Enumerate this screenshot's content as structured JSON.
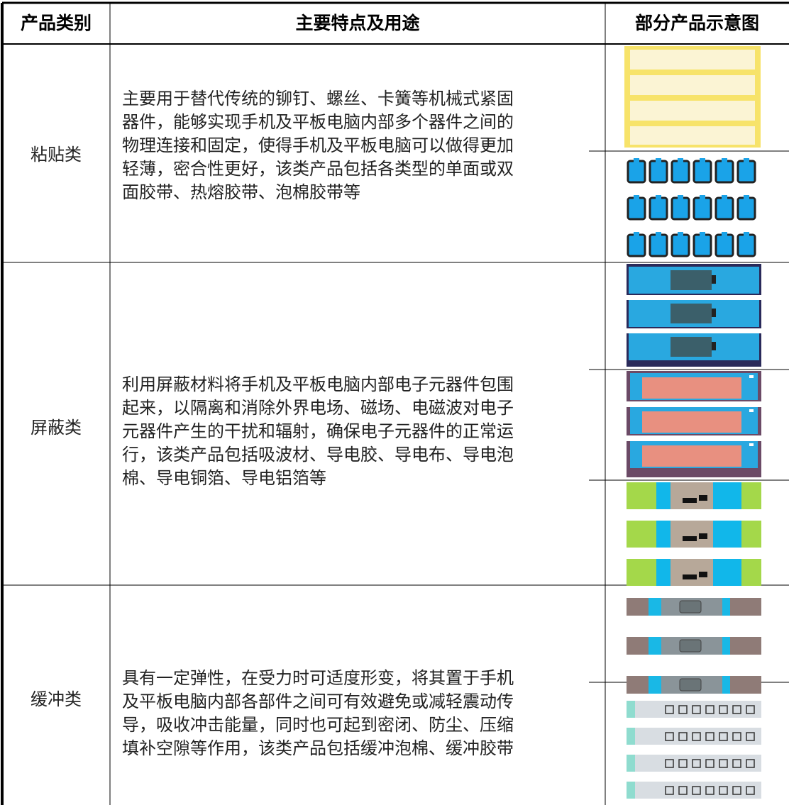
{
  "header": [
    "产品类别",
    "主要特点及用途",
    "部分产品示意图"
  ],
  "rows": [
    {
      "category": "粘贴类",
      "description": [
        "主要用于替代传统的铆钉、螺丝、卡簧等机械式紧固",
        "器件，能够实现手机及平板电脑内部多个器件之间的",
        "物理连接和固定，使得手机及平板电脑可以做得更加",
        "轻薄，密合性更好，该类产品包括各类型的单面或双",
        "面胶带、热熔胶带、泡棉胶带等"
      ]
    },
    {
      "category": "屏蔽类",
      "description": [
        "利用屏蔽材料将手机及平板电脑内部电子元器件包围",
        "起来，以隔离和消除外界电场、磁场、电磁波对电子",
        "元器件产生的干扰和辐射，确保电子元器件的正常运",
        "行，该类产品包括吸波材、导电胶、导电布、导电泡",
        "棉、导电铜箔、导电铝箔等"
      ]
    },
    {
      "category": "缓冲类",
      "description": [
        "具有一定弹性，在受力时可适度形变，将其置于手机",
        "及平板电脑内部各部件之间可有效避免或减轻震动传",
        "导，吸收冲击能量，同时也可起到密闭、防尘、压缩",
        "填补空隙等作用，该类产品包括缓冲泡棉、缓冲胶带"
      ]
    }
  ]
}
